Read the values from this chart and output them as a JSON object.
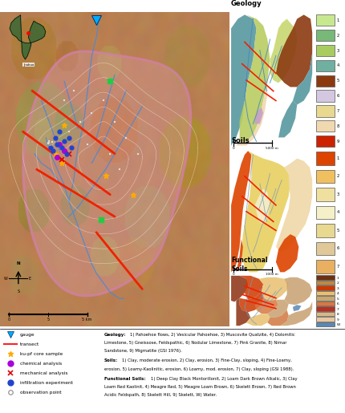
{
  "bg_color": "#ffffff",
  "geology_legend": [
    {
      "num": "1",
      "color": "#c8e890"
    },
    {
      "num": "2",
      "color": "#78b878"
    },
    {
      "num": "3",
      "color": "#a8cc60"
    },
    {
      "num": "4",
      "color": "#70b0a0"
    },
    {
      "num": "5",
      "color": "#8b3a10"
    },
    {
      "num": "6",
      "color": "#d4c8e0"
    },
    {
      "num": "7",
      "color": "#e8d890"
    },
    {
      "num": "8",
      "color": "#f0d8b0"
    },
    {
      "num": "9",
      "color": "#cc2200"
    }
  ],
  "soils_legend": [
    {
      "num": "1",
      "color": "#dd4400"
    },
    {
      "num": "2",
      "color": "#f0c060"
    },
    {
      "num": "3",
      "color": "#f0e0a0"
    },
    {
      "num": "4",
      "color": "#f5f0c8"
    },
    {
      "num": "5",
      "color": "#e8d890"
    },
    {
      "num": "6",
      "color": "#e0c898"
    },
    {
      "num": "7",
      "color": "#e8b060"
    }
  ],
  "functional_legend": [
    {
      "num": "1",
      "color": "#6b3010"
    },
    {
      "num": "2",
      "color": "#c08840"
    },
    {
      "num": "3",
      "color": "#cc3800"
    },
    {
      "num": "4",
      "color": "#e8c070"
    },
    {
      "num": "5",
      "color": "#c8a870"
    },
    {
      "num": "6",
      "color": "#d87840"
    },
    {
      "num": "7",
      "color": "#b83020"
    },
    {
      "num": "8",
      "color": "#d8b888"
    },
    {
      "num": "9",
      "color": "#e8c8a0"
    },
    {
      "num": "W",
      "color": "#5888b8"
    }
  ],
  "legend_items_left": [
    {
      "marker": "v",
      "color": "#00aaff",
      "edge": "#005588",
      "label": "gauge"
    },
    {
      "marker": "line",
      "color": "#ff2222",
      "label": "transect"
    },
    {
      "marker": "*",
      "color": "#ffaa00",
      "label": "ku-pf core sample"
    },
    {
      "marker": "o",
      "color": "#aa00dd",
      "label": "chemical analysis"
    },
    {
      "marker": "x",
      "color": "#dd0000",
      "label": "mechanical analysis"
    },
    {
      "marker": "o",
      "color": "#2244cc",
      "label": "infiltration experiment"
    },
    {
      "marker": "o_open",
      "color": "#888888",
      "label": "observation point"
    }
  ],
  "desc_geology": "Geology:",
  "desc_geology_text": " 1) Pahoehoe flows, 2) Vesicular Pahoehoe, 3) Muscovite Quatzite, 4) Dolomitic Limestone, 5) Gneissose, Feldspathic, 6) Nodular Limestone, 7) Pink Granite, 8) Nimar Sandstone, 9) Migmatite (GSI 1976).",
  "desc_soils": "Soils:",
  "desc_soils_text": " 1) Clay, moderate erosion, 2) Clay, erosion, 3) Fine-Clay, sloping, 4) Fine-Loamy, erosion, 5) Loamy-Kaolinitic, erosion, 6) Loamy, mod. erosion, 7) Clay, sloping (GSI 1988).",
  "desc_func": "Functional Soils:",
  "desc_func_text": " 1) Deep Clay Black Montorillonit, 2) Loam Dark Brown Alkalic, 3) Clay Loam Red Kaolinit, 4) Meagre Red, 5) Meagre Loam Brown, 6) Skelett Brown, 7) Red Brown Acidic Feldspath, 8) Skelett Hill, 9) Skelett, W) Water."
}
